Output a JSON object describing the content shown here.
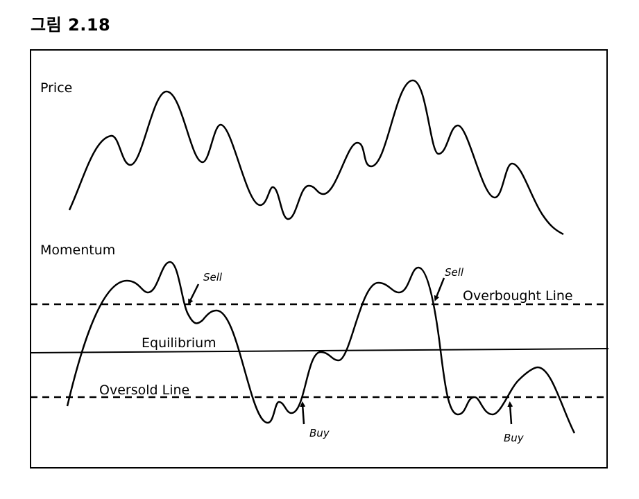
{
  "figure": {
    "title": "그림 2.18"
  },
  "labels": {
    "price": "Price",
    "momentum": "Momentum",
    "overbought": "Overbought Line",
    "equilibrium": "Equilibrium",
    "oversold": "Oversold Line"
  },
  "signals": [
    {
      "id": "sell-1",
      "text": "Sell"
    },
    {
      "id": "sell-2",
      "text": "Sell"
    },
    {
      "id": "buy-1",
      "text": "Buy"
    },
    {
      "id": "buy-2",
      "text": "Buy"
    }
  ]
}
